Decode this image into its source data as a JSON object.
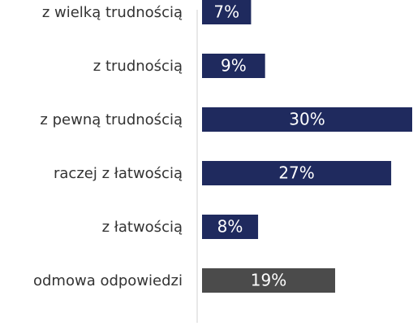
{
  "chart_data": {
    "type": "barh",
    "categories": [
      "z wielką trudnością",
      "z trudnością",
      "z pewną trudnością",
      "raczej z łatwością",
      "z łatwością",
      "odmowa odpowiedzi"
    ],
    "values": [
      7,
      9,
      30,
      27,
      8,
      19
    ],
    "value_labels": [
      "7%",
      "9%",
      "30%",
      "27%",
      "8%",
      "19%"
    ],
    "colors": [
      "#1f2a5e",
      "#1f2a5e",
      "#1f2a5e",
      "#1f2a5e",
      "#1f2a5e",
      "#4b4b4b"
    ],
    "xlim": [
      0,
      30
    ]
  }
}
